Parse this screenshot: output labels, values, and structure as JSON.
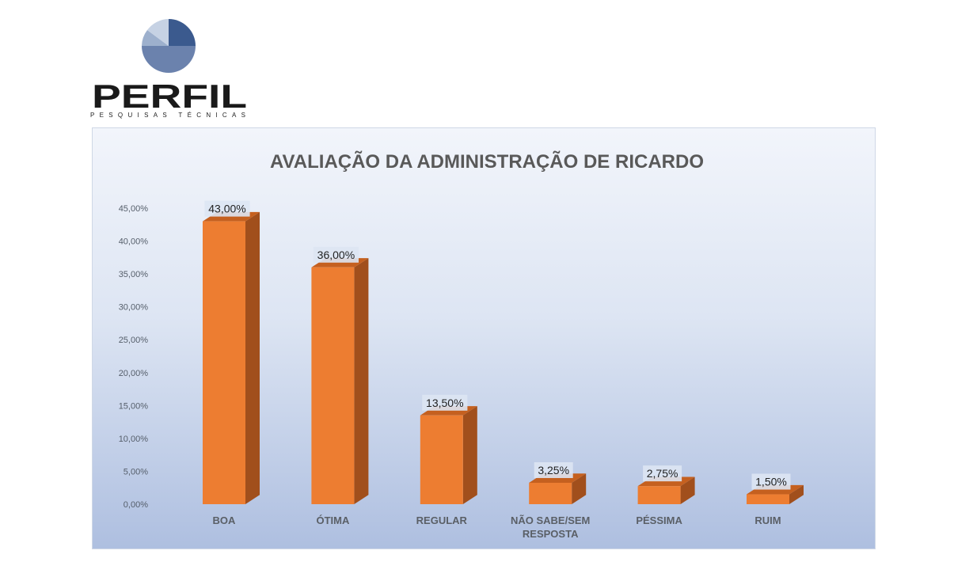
{
  "logo": {
    "brand": "PERFIL",
    "tagline": "PESQUISAS TÉCNICAS",
    "colors": [
      "#3b5a8e",
      "#6b82ad",
      "#9db0cd",
      "#c6d2e4"
    ]
  },
  "chart_data": {
    "type": "bar",
    "title": "AVALIAÇÃO DA ADMINISTRAÇÃO DE RICARDO",
    "categories": [
      "BOA",
      "ÓTIMA",
      "REGULAR",
      "NÃO SABE/SEM RESPOSTA",
      "PÉSSIMA",
      "RUIM"
    ],
    "category_lines": [
      [
        "BOA"
      ],
      [
        "ÓTIMA"
      ],
      [
        "REGULAR"
      ],
      [
        "NÃO SABE/SEM",
        "RESPOSTA"
      ],
      [
        "PÉSSIMA"
      ],
      [
        "RUIM"
      ]
    ],
    "values": [
      43.0,
      36.0,
      13.5,
      3.25,
      2.75,
      1.5
    ],
    "data_labels": [
      "43,00%",
      "36,00%",
      "13,50%",
      "3,25%",
      "2,75%",
      "1,50%"
    ],
    "y_ticks": [
      "0,00%",
      "5,00%",
      "10,00%",
      "15,00%",
      "20,00%",
      "25,00%",
      "30,00%",
      "35,00%",
      "40,00%",
      "45,00%"
    ],
    "ylim": [
      0,
      45
    ],
    "xlabel": "",
    "ylabel": "",
    "grid": false,
    "bar_color": "#ed7d31",
    "bar_side_color": "#a14f1c",
    "bar_top_color": "#c5601f"
  }
}
